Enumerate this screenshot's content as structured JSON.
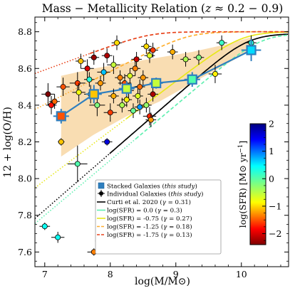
{
  "chart_data": {
    "type": "scatter",
    "title": "Mass − Metallicity Relation (z ≈ 0.2 − 0.9)",
    "title_parts": {
      "lead": "Mass − Metallicity Relation (",
      "var": "z",
      "tail": " ≈ 0.2 − 0.9)"
    },
    "xlabel": "log(M/M⊙)",
    "ylabel": "12 + log(O/H)",
    "xlim": [
      6.85,
      10.72
    ],
    "ylim": [
      7.52,
      8.88
    ],
    "x_ticks": [
      "7",
      "8",
      "9",
      "10"
    ],
    "y_ticks": [
      "7.6",
      "7.8",
      "8.0",
      "8.2",
      "8.4",
      "8.6",
      "8.8"
    ],
    "x_tick_values": [
      7,
      8,
      9,
      10
    ],
    "y_tick_values": [
      7.6,
      7.8,
      8.0,
      8.2,
      8.4,
      8.6,
      8.8
    ],
    "colorbar": {
      "label": "log(SFR) [M⊙ yr⁻¹]",
      "label_parts": {
        "main": "log(SFR) [M⊙ yr",
        "sup": "−1",
        "end": "]"
      },
      "range": [
        -2.4,
        2.0
      ],
      "ticks": [
        "2",
        "1",
        "0",
        "−1",
        "−2"
      ],
      "tick_values": [
        2,
        1,
        0,
        -1,
        -2
      ],
      "colormap": "jet_r (red = low SFR, blue = high SFR)"
    },
    "legend": {
      "placement": "lower-right",
      "entries": [
        {
          "key": "stacked",
          "text": "Stacked Galaxies (",
          "italic": "this study",
          "end": ")",
          "color": "#1f77b4"
        },
        {
          "key": "individual",
          "text": "Individual Galaxies (",
          "italic": "this study",
          "end": ")",
          "color": "#000000"
        },
        {
          "key": "curti",
          "text": "Curti et al. 2020 (",
          "italic": "γ",
          "end": " = 0.31)",
          "color": "#000000"
        },
        {
          "key": "sfr0",
          "text": "log(SFR) = 0.0 (",
          "italic": "γ",
          "end": " = 0.3)",
          "color": "#5ff0b0"
        },
        {
          "key": "sfr075",
          "text": "log(SFR) = -0.75 (",
          "italic": "γ",
          "end": " = 0.27)",
          "color": "#e8e81a"
        },
        {
          "key": "sfr125",
          "text": "log(SFR) = -1.25 (",
          "italic": "γ",
          "end": " = 0.18)",
          "color": "#ffae2e"
        },
        {
          "key": "sfr175",
          "text": "log(SFR) = -1.75 (",
          "italic": "γ",
          "end": " = 0.13)",
          "color": "#e8421a"
        }
      ]
    },
    "relations": [
      {
        "key": "curti",
        "color": "#000000",
        "dash": "solid",
        "x0": 8.0,
        "z0": 8.79,
        "m0": 10.1,
        "gamma": 0.31,
        "x_from": 6.85,
        "dotted_until": 8.0
      },
      {
        "key": "sfr0",
        "color": "#5ff0b0",
        "dash": "dashed",
        "x0": 8.4,
        "z0": 8.79,
        "m0": 10.3,
        "gamma": 0.3,
        "x_from": 6.85,
        "dotted_until": 8.4
      },
      {
        "key": "sfr075",
        "color": "#e8e81a",
        "dash": "solid",
        "x0": 8.25,
        "z0": 8.8,
        "m0": 10.0,
        "gamma": 0.27,
        "x_from": 6.85,
        "dotted_until": 8.25
      },
      {
        "key": "sfr125",
        "color": "#ffae2e",
        "dash": "dashed",
        "x0": 6.85,
        "z0": 8.8,
        "m0": 9.2,
        "gamma": 0.18,
        "x_from": 6.85,
        "dotted_until": 7.7
      },
      {
        "key": "sfr175",
        "color": "#e8421a",
        "dash": "dashed",
        "x0": 6.85,
        "z0": 8.8,
        "m0": 8.6,
        "gamma": 0.13,
        "x_from": 6.85,
        "dotted_until": 7.7
      }
    ],
    "band": {
      "color": "#f5c77e",
      "x": [
        7.25,
        7.75,
        8.25,
        8.75,
        9.25,
        9.75,
        10.15
      ],
      "lower": [
        8.12,
        8.24,
        8.34,
        8.42,
        8.52,
        8.62,
        8.7
      ],
      "upper": [
        8.56,
        8.6,
        8.63,
        8.66,
        8.69,
        8.73,
        8.77
      ]
    },
    "stacked": {
      "color": "#2f7fbf",
      "points": [
        {
          "x": 7.25,
          "y": 8.34,
          "xerr": 0.12,
          "yerr": 0.04,
          "sfr": -1.5
        },
        {
          "x": 7.75,
          "y": 8.46,
          "xerr": 0.12,
          "yerr": 0.05,
          "sfr": -1.0
        },
        {
          "x": 8.25,
          "y": 8.49,
          "xerr": 0.12,
          "yerr": 0.04,
          "sfr": -0.5
        },
        {
          "x": 8.7,
          "y": 8.52,
          "xerr": 0.1,
          "yerr": 0.03,
          "sfr": -0.5
        },
        {
          "x": 9.25,
          "y": 8.54,
          "xerr": 0.12,
          "yerr": 0.04,
          "sfr": 0.0
        },
        {
          "x": 10.15,
          "y": 8.7,
          "xerr": 0.15,
          "yerr": 0.06,
          "sfr": 0.5
        }
      ]
    },
    "individual": [
      {
        "x": 7.0,
        "y": 7.74,
        "xerr": 0.08,
        "yerr": 0.02,
        "sfr": 0.3
      },
      {
        "x": 7.2,
        "y": 7.68,
        "xerr": 0.1,
        "yerr": 0.03,
        "sfr": 0.3
      },
      {
        "x": 7.75,
        "y": 7.6,
        "xerr": 0.1,
        "yerr": 0.02,
        "sfr": -1.3
      },
      {
        "x": 7.85,
        "y": 7.66,
        "xerr": 0.08,
        "yerr": 0.02,
        "sfr": 0.5
      },
      {
        "x": 7.5,
        "y": 8.08,
        "xerr": 0.15,
        "yerr": 0.1,
        "sfr": 0.0
      },
      {
        "x": 7.95,
        "y": 8.2,
        "xerr": 0.08,
        "yerr": 0.02,
        "sfr": 1.6
      },
      {
        "x": 7.25,
        "y": 8.2,
        "xerr": 0.05,
        "yerr": 0.02,
        "sfr": -1.0
      },
      {
        "x": 7.05,
        "y": 8.46,
        "xerr": 0.1,
        "yerr": 0.06,
        "sfr": -2.4
      },
      {
        "x": 7.1,
        "y": 8.4,
        "xerr": 0.08,
        "yerr": 0.05,
        "sfr": -1.8
      },
      {
        "x": 7.15,
        "y": 8.42,
        "xerr": 0.08,
        "yerr": 0.04,
        "sfr": -1.4
      },
      {
        "x": 7.28,
        "y": 8.5,
        "xerr": 0.1,
        "yerr": 0.05,
        "sfr": -1.5
      },
      {
        "x": 7.5,
        "y": 8.52,
        "xerr": 0.12,
        "yerr": 0.06,
        "sfr": -1.6
      },
      {
        "x": 7.52,
        "y": 8.47,
        "xerr": 0.1,
        "yerr": 0.05,
        "sfr": -0.7
      },
      {
        "x": 7.55,
        "y": 8.64,
        "xerr": 0.08,
        "yerr": 0.04,
        "sfr": -1.0
      },
      {
        "x": 7.65,
        "y": 8.6,
        "xerr": 0.1,
        "yerr": 0.05,
        "sfr": -2.0
      },
      {
        "x": 7.68,
        "y": 8.54,
        "xerr": 0.08,
        "yerr": 0.04,
        "sfr": 0.2
      },
      {
        "x": 7.7,
        "y": 8.46,
        "xerr": 0.1,
        "yerr": 0.05,
        "sfr": -0.3
      },
      {
        "x": 7.75,
        "y": 8.66,
        "xerr": 0.08,
        "yerr": 0.04,
        "sfr": -2.3
      },
      {
        "x": 7.8,
        "y": 8.4,
        "xerr": 0.12,
        "yerr": 0.06,
        "sfr": -0.2
      },
      {
        "x": 7.85,
        "y": 8.52,
        "xerr": 0.08,
        "yerr": 0.04,
        "sfr": -1.2
      },
      {
        "x": 7.9,
        "y": 8.58,
        "xerr": 0.1,
        "yerr": 0.05,
        "sfr": 0.6
      },
      {
        "x": 7.95,
        "y": 8.67,
        "xerr": 0.08,
        "yerr": 0.04,
        "sfr": -2.2
      },
      {
        "x": 8.0,
        "y": 8.36,
        "xerr": 0.1,
        "yerr": 0.05,
        "sfr": -1.6
      },
      {
        "x": 8.05,
        "y": 8.45,
        "xerr": 0.08,
        "yerr": 0.04,
        "sfr": -1.1
      },
      {
        "x": 8.05,
        "y": 8.62,
        "xerr": 0.1,
        "yerr": 0.05,
        "sfr": -0.5
      },
      {
        "x": 8.1,
        "y": 8.74,
        "xerr": 0.08,
        "yerr": 0.04,
        "sfr": -0.9
      },
      {
        "x": 8.15,
        "y": 8.55,
        "xerr": 0.08,
        "yerr": 0.04,
        "sfr": -1.3
      },
      {
        "x": 8.18,
        "y": 8.4,
        "xerr": 0.08,
        "yerr": 0.04,
        "sfr": -0.4
      },
      {
        "x": 8.22,
        "y": 8.52,
        "xerr": 0.1,
        "yerr": 0.05,
        "sfr": -1.5
      },
      {
        "x": 8.25,
        "y": 8.43,
        "xerr": 0.08,
        "yerr": 0.04,
        "sfr": -0.8
      },
      {
        "x": 8.28,
        "y": 8.48,
        "xerr": 0.08,
        "yerr": 0.04,
        "sfr": -0.2
      },
      {
        "x": 8.3,
        "y": 8.56,
        "xerr": 0.08,
        "yerr": 0.04,
        "sfr": -0.6
      },
      {
        "x": 8.35,
        "y": 8.37,
        "xerr": 0.08,
        "yerr": 0.04,
        "sfr": -0.1
      },
      {
        "x": 8.38,
        "y": 8.6,
        "xerr": 0.08,
        "yerr": 0.04,
        "sfr": -1.3
      },
      {
        "x": 8.4,
        "y": 8.65,
        "xerr": 0.08,
        "yerr": 0.04,
        "sfr": -2.1
      },
      {
        "x": 8.42,
        "y": 8.45,
        "xerr": 0.08,
        "yerr": 0.04,
        "sfr": -0.6
      },
      {
        "x": 8.45,
        "y": 8.5,
        "xerr": 0.08,
        "yerr": 0.04,
        "sfr": -1.4
      },
      {
        "x": 8.45,
        "y": 8.39,
        "xerr": 0.08,
        "yerr": 0.04,
        "sfr": 0.8
      },
      {
        "x": 8.5,
        "y": 8.55,
        "xerr": 0.08,
        "yerr": 0.04,
        "sfr": -1.2
      },
      {
        "x": 8.55,
        "y": 8.4,
        "xerr": 0.08,
        "yerr": 0.04,
        "sfr": -0.3
      },
      {
        "x": 8.6,
        "y": 8.67,
        "xerr": 0.08,
        "yerr": 0.04,
        "sfr": -0.6
      },
      {
        "x": 8.65,
        "y": 8.7,
        "xerr": 0.08,
        "yerr": 0.04,
        "sfr": -1.6
      },
      {
        "x": 8.65,
        "y": 8.46,
        "xerr": 0.08,
        "yerr": 0.04,
        "sfr": -2.2
      },
      {
        "x": 8.6,
        "y": 8.34,
        "xerr": 0.1,
        "yerr": 0.05,
        "sfr": -1.7
      },
      {
        "x": 8.62,
        "y": 8.32,
        "xerr": 0.08,
        "yerr": 0.04,
        "sfr": -1.2
      },
      {
        "x": 8.55,
        "y": 8.72,
        "xerr": 0.08,
        "yerr": 0.04,
        "sfr": -0.9
      },
      {
        "x": 8.95,
        "y": 8.69,
        "xerr": 0.08,
        "yerr": 0.04,
        "sfr": -1.1
      },
      {
        "x": 9.15,
        "y": 8.65,
        "xerr": 0.08,
        "yerr": 0.04,
        "sfr": -0.4
      },
      {
        "x": 9.35,
        "y": 8.66,
        "xerr": 0.08,
        "yerr": 0.04,
        "sfr": -0.2
      },
      {
        "x": 9.7,
        "y": 8.74,
        "xerr": 0.08,
        "yerr": 0.04,
        "sfr": 0.1
      },
      {
        "x": 9.6,
        "y": 8.57,
        "xerr": 0.1,
        "yerr": 0.05,
        "sfr": -0.8
      },
      {
        "x": 10.15,
        "y": 8.74,
        "xerr": 0.08,
        "yerr": 0.04,
        "sfr": 0.2
      }
    ]
  }
}
